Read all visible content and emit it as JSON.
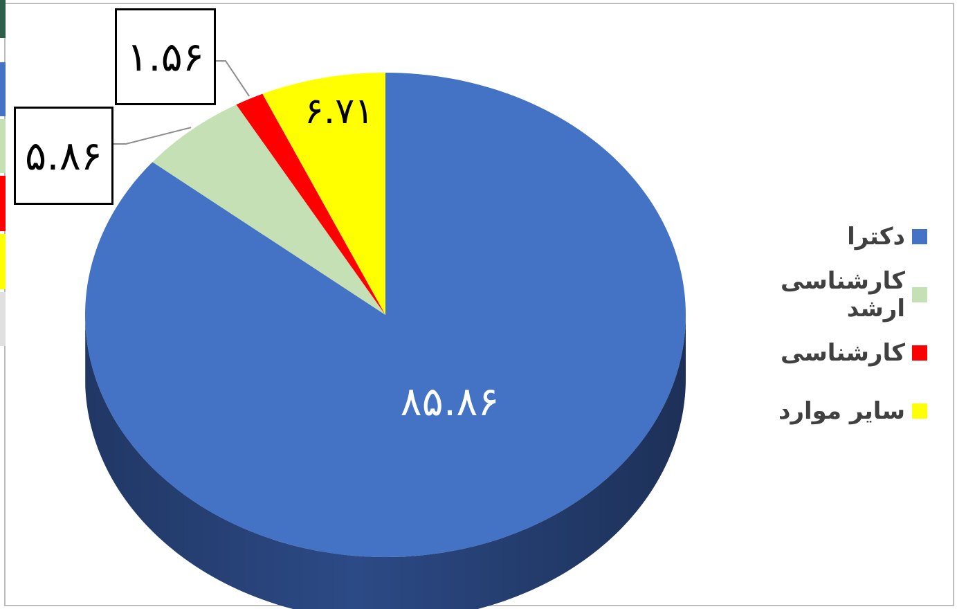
{
  "chart_data": {
    "type": "pie",
    "style": "3d",
    "slices": [
      {
        "label": "دکترا",
        "value": 85.86,
        "value_text": "۸۵.۸۶",
        "color": "#4472C4",
        "side_color": "#2C4A86"
      },
      {
        "label": "کارشناسی ارشد",
        "value": 5.86,
        "value_text": "۵.۸۶",
        "color": "#C5E0B4",
        "side_color": "#8FA883"
      },
      {
        "label": "کارشناسی",
        "value": 1.56,
        "value_text": "۱.۵۶",
        "color": "#FF0000",
        "side_color": "#B00000"
      },
      {
        "label": "سایر موارد",
        "value": 6.71,
        "value_text": "۶.۷۱",
        "color": "#FFFF00",
        "side_color": "#C7C700"
      }
    ],
    "legend_position": "right"
  },
  "edge_strip_colors": [
    "#2E5F4B",
    "#4472C4",
    "#C5E0B4",
    "#FF0000",
    "#FFFF00",
    "#E0E0E0"
  ]
}
